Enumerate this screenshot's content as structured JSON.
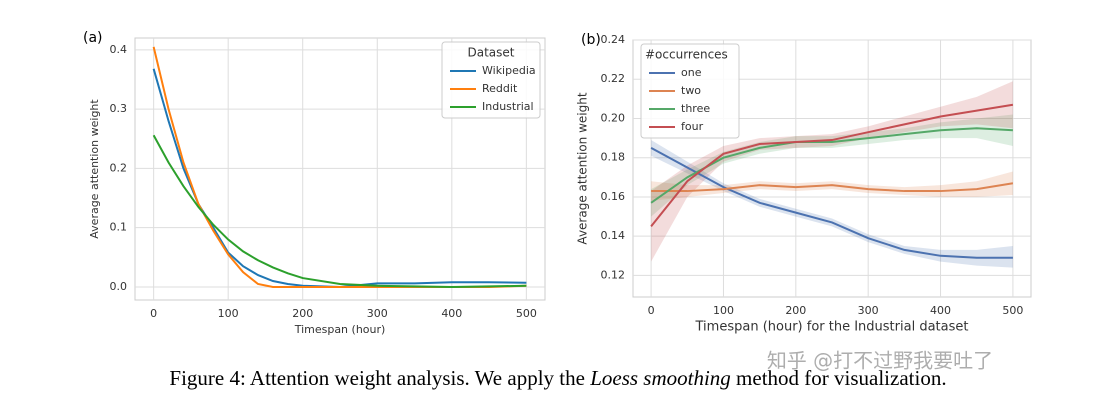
{
  "chart_data": [
    {
      "type": "line",
      "panel": "(a)",
      "xlabel": "Timespan (hour)",
      "ylabel": "Average attention weight",
      "legend_title": "Dataset",
      "legend": "upper right",
      "grid": true,
      "x": [
        0,
        20,
        40,
        60,
        80,
        100,
        120,
        140,
        160,
        180,
        200,
        250,
        300,
        350,
        400,
        450,
        500
      ],
      "series": [
        {
          "name": "Wikipedia",
          "color": "#1f77b4",
          "values": [
            0.368,
            0.28,
            0.2,
            0.14,
            0.1,
            0.058,
            0.035,
            0.02,
            0.01,
            0.005,
            0.002,
            0.0,
            0.006,
            0.006,
            0.008,
            0.008,
            0.007
          ]
        },
        {
          "name": "Reddit",
          "color": "#ff7f0e",
          "values": [
            0.405,
            0.3,
            0.21,
            0.14,
            0.095,
            0.055,
            0.025,
            0.005,
            0.0,
            0.0,
            0.0,
            0.0,
            0.0,
            0.0,
            0.0,
            0.0,
            0.002
          ]
        },
        {
          "name": "Industrial",
          "color": "#2ca02c",
          "values": [
            0.256,
            0.21,
            0.17,
            0.135,
            0.105,
            0.08,
            0.06,
            0.045,
            0.033,
            0.023,
            0.015,
            0.005,
            0.002,
            0.001,
            0.0,
            0.001,
            0.002
          ]
        }
      ],
      "xlim": [
        -25,
        525
      ],
      "xticks": [
        0,
        100,
        200,
        300,
        400,
        500
      ],
      "ylim": [
        -0.022,
        0.42
      ],
      "yticks": [
        {
          "value": 0,
          "label": "0.0"
        },
        0.1,
        0.2,
        0.3,
        0.4
      ]
    },
    {
      "type": "line",
      "panel": "(b)",
      "xlabel": "Timespan (hour) for the Industrial dataset",
      "ylabel": "Average attention weight",
      "legend_title": "#occurrences",
      "legend": "upper left",
      "grid": true,
      "x": [
        0,
        50,
        100,
        150,
        200,
        250,
        300,
        350,
        400,
        450,
        500
      ],
      "series": [
        {
          "name": "one",
          "color": "#4c72b0",
          "values": [
            0.185,
            0.175,
            0.165,
            0.157,
            0.152,
            0.147,
            0.139,
            0.133,
            0.13,
            0.129,
            0.129
          ],
          "lower": [
            0.181,
            0.172,
            0.163,
            0.155,
            0.15,
            0.145,
            0.137,
            0.131,
            0.127,
            0.125,
            0.124
          ],
          "upper": [
            0.189,
            0.178,
            0.167,
            0.159,
            0.154,
            0.149,
            0.141,
            0.135,
            0.133,
            0.133,
            0.135
          ]
        },
        {
          "name": "two",
          "color": "#dd8452",
          "values": [
            0.163,
            0.163,
            0.164,
            0.166,
            0.165,
            0.166,
            0.164,
            0.163,
            0.163,
            0.164,
            0.167
          ],
          "lower": [
            0.158,
            0.16,
            0.162,
            0.164,
            0.163,
            0.164,
            0.162,
            0.161,
            0.16,
            0.16,
            0.161
          ],
          "upper": [
            0.168,
            0.166,
            0.166,
            0.168,
            0.167,
            0.168,
            0.166,
            0.165,
            0.166,
            0.168,
            0.173
          ]
        },
        {
          "name": "three",
          "color": "#55a868",
          "values": [
            0.157,
            0.17,
            0.18,
            0.185,
            0.188,
            0.188,
            0.19,
            0.192,
            0.194,
            0.195,
            0.194
          ],
          "lower": [
            0.15,
            0.166,
            0.177,
            0.182,
            0.185,
            0.185,
            0.187,
            0.189,
            0.19,
            0.19,
            0.186
          ],
          "upper": [
            0.164,
            0.174,
            0.183,
            0.188,
            0.191,
            0.191,
            0.193,
            0.195,
            0.198,
            0.2,
            0.202
          ]
        },
        {
          "name": "four",
          "color": "#c44e52",
          "values": [
            0.145,
            0.168,
            0.182,
            0.187,
            0.188,
            0.189,
            0.193,
            0.197,
            0.201,
            0.204,
            0.207
          ],
          "lower": [
            0.127,
            0.16,
            0.178,
            0.184,
            0.185,
            0.186,
            0.19,
            0.193,
            0.196,
            0.197,
            0.195
          ],
          "upper": [
            0.163,
            0.176,
            0.186,
            0.19,
            0.191,
            0.192,
            0.196,
            0.201,
            0.206,
            0.211,
            0.219
          ]
        }
      ],
      "xlim": [
        -25,
        525
      ],
      "xticks": [
        0,
        100,
        200,
        300,
        400,
        500
      ],
      "ylim": [
        0.109,
        0.24
      ],
      "yticks": [
        0.12,
        0.14,
        0.16,
        0.18,
        {
          "value": 0.2,
          "label": "0.20"
        },
        0.22,
        0.24
      ]
    }
  ],
  "caption": {
    "prefix": "Figure 4: Attention weight analysis. We apply the ",
    "emphasis": "Loess smoothing",
    "suffix": " method for visualization."
  },
  "watermark": "知乎 @打不过野我要吐了"
}
